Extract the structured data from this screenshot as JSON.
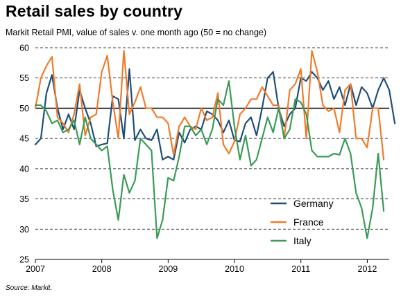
{
  "chart_data": {
    "type": "line",
    "title": "Retail sales by country",
    "subtitle": "Markit Retail PMI, value of sales v. one month ago (50 = no change)",
    "source": "Source: Markit.",
    "ylim": [
      25,
      60
    ],
    "yticks": [
      60,
      55,
      50,
      45,
      40,
      35,
      30,
      25
    ],
    "xlim": [
      2007.0,
      2012.33
    ],
    "xtick_labels": [
      "2007",
      "2008",
      "2009",
      "2010",
      "2011",
      "2012"
    ],
    "x_start": 2007.0,
    "x_step": 0.0833,
    "reference_line": 50,
    "grid": "horizontal dashed",
    "legend_position": "bottom-right",
    "series": [
      {
        "name": "Germany",
        "color": "#1f4e79",
        "values": [
          44.0,
          45.0,
          52.5,
          55.5,
          50.0,
          46.5,
          49.0,
          46.5,
          53.0,
          50.0,
          47.5,
          43.7,
          44.0,
          44.2,
          52.0,
          51.5,
          45.0,
          56.5,
          44.7,
          46.5,
          45.0,
          44.7,
          46.5,
          41.5,
          42.0,
          41.5,
          46.0,
          44.3,
          46.5,
          47.0,
          46.5,
          49.5,
          49.0,
          48.0,
          46.0,
          48.0,
          44.7,
          44.5,
          47.5,
          48.5,
          45.5,
          50.0,
          55.0,
          56.0,
          50.0,
          47.0,
          49.0,
          50.0,
          55.0,
          54.5,
          56.0,
          55.0,
          53.0,
          54.5,
          51.5,
          53.5,
          50.5,
          54.0,
          50.5,
          53.5,
          52.5,
          50.0,
          53.0,
          55.0,
          53.0,
          47.5
        ]
      },
      {
        "name": "France",
        "color": "#f07b2b",
        "values": [
          50.0,
          55.0,
          57.0,
          58.5,
          48.5,
          47.5,
          46.0,
          49.0,
          54.0,
          45.5,
          48.5,
          49.0,
          56.0,
          58.7,
          51.0,
          45.0,
          59.5,
          49.0,
          51.0,
          53.5,
          50.0,
          50.0,
          48.5,
          48.5,
          47.5,
          42.3,
          47.0,
          48.5,
          47.0,
          46.5,
          50.0,
          48.0,
          48.5,
          52.5,
          44.0,
          42.5,
          44.5,
          49.0,
          50.0,
          51.5,
          51.5,
          53.5,
          52.0,
          50.5,
          50.5,
          45.0,
          53.0,
          54.0,
          56.5,
          45.0,
          59.5,
          56.0,
          50.5,
          49.5,
          50.0,
          46.0,
          53.0,
          54.0,
          45.0,
          45.0,
          43.5,
          50.0,
          50.0,
          41.5
        ]
      },
      {
        "name": "Italy",
        "color": "#3a9a57",
        "values": [
          50.5,
          50.5,
          49.5,
          47.5,
          48.0,
          46.0,
          46.5,
          48.0,
          44.0,
          48.5,
          45.0,
          44.0,
          43.0,
          43.7,
          36.5,
          31.5,
          39.0,
          36.0,
          38.0,
          45.0,
          44.0,
          43.0,
          28.5,
          31.5,
          38.5,
          38.0,
          42.0,
          47.0,
          47.0,
          45.5,
          46.5,
          44.0,
          46.5,
          51.5,
          50.5,
          54.5,
          47.0,
          41.5,
          45.5,
          40.5,
          41.5,
          45.0,
          48.5,
          46.0,
          50.0,
          45.0,
          46.5,
          51.5,
          51.0,
          49.0,
          43.0,
          42.0,
          42.0,
          42.0,
          42.5,
          42.3,
          45.0,
          42.5,
          36.0,
          33.5,
          28.5,
          33.5,
          42.5,
          33.0
        ]
      }
    ]
  }
}
